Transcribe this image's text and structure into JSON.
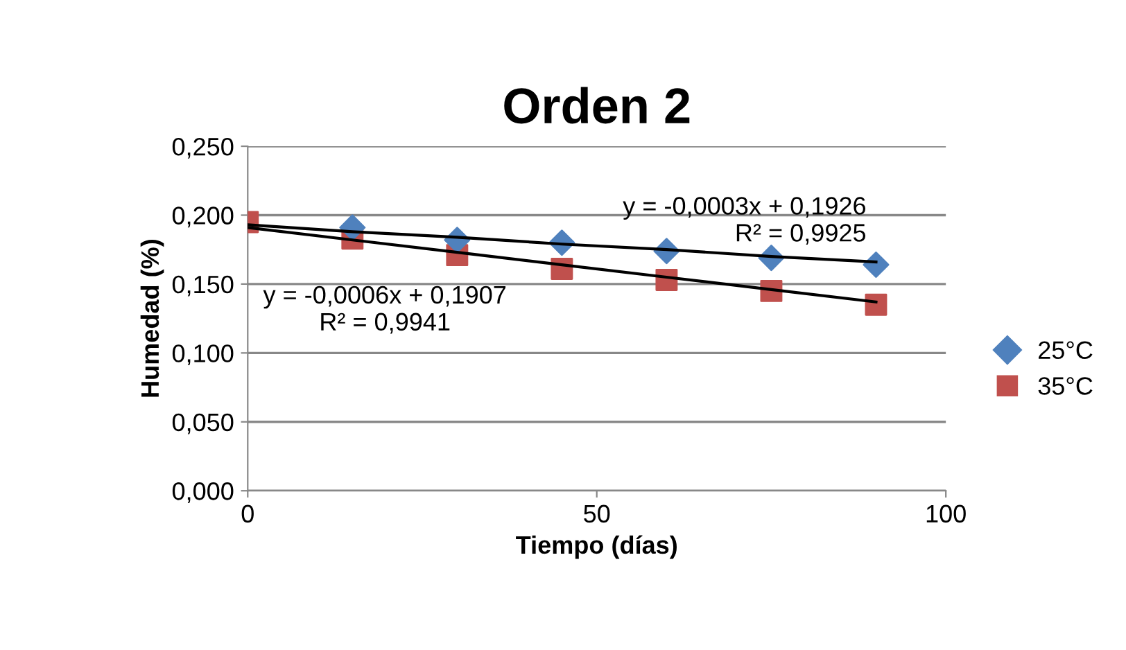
{
  "chart_data": {
    "type": "scatter",
    "title": "Orden 2",
    "xlabel": "Tiempo (días)",
    "ylabel": "Humedad (%)",
    "x": [
      0,
      15,
      30,
      45,
      60,
      75,
      90
    ],
    "series": [
      {
        "name": "25°C",
        "color": "#4f81bd",
        "marker": "diamond",
        "values": [
          null,
          0.191,
          0.182,
          0.18,
          0.174,
          0.169,
          0.164
        ]
      },
      {
        "name": "35°C",
        "color": "#c0504d",
        "marker": "square",
        "values": [
          0.195,
          0.183,
          0.171,
          0.161,
          0.153,
          0.145,
          0.135
        ]
      },
      {
        "type": "line",
        "color": "#000000",
        "values": [
          0.193,
          0.188,
          0.184,
          0.179,
          0.175,
          0.17,
          0.166
        ]
      },
      {
        "type": "line",
        "color": "#000000",
        "values": [
          0.191,
          0.182,
          0.173,
          0.164,
          0.155,
          0.146,
          0.137
        ]
      }
    ],
    "annotations": [
      {
        "text": "y = -0,0003x + 0,1926\nR² = 0,9925",
        "x": 90,
        "y": 0.166
      },
      {
        "text": "y = -0,0006x + 0,1907\nR² = 0,9941",
        "x": 0,
        "y": 0.191
      }
    ],
    "xlim": [
      0,
      100
    ],
    "xticks": [
      0,
      50,
      100
    ],
    "ylim": [
      0,
      0.25
    ],
    "yticks": [
      {
        "value": 0,
        "label": "0,000"
      },
      {
        "value": 0.05,
        "label": "0,050"
      },
      {
        "value": 0.1,
        "label": "0,100"
      },
      {
        "value": 0.15,
        "label": "0,150"
      },
      {
        "value": 0.2,
        "label": "0,200"
      },
      {
        "value": 0.25,
        "label": "0,250"
      }
    ],
    "grid": "y",
    "legend": "right"
  }
}
